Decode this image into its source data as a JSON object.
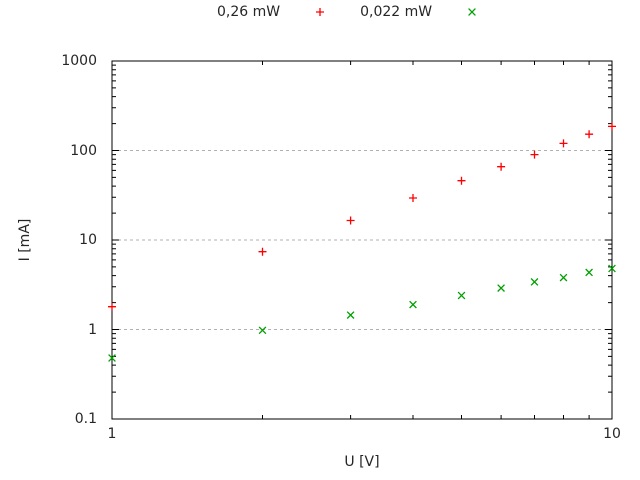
{
  "legend": {
    "entries": [
      {
        "label": "0,26 mW",
        "marker": "plus",
        "color": "#ff0000"
      },
      {
        "label": "0,022 mW",
        "marker": "cross",
        "color": "#00a000"
      }
    ]
  },
  "chart_data": {
    "type": "scatter",
    "title": "",
    "xlabel": "U [V]",
    "ylabel": "I [mA]",
    "x_scale": "log",
    "y_scale": "log",
    "xlim": [
      1,
      10
    ],
    "ylim": [
      0.1,
      1000
    ],
    "x_ticks": [
      1,
      10
    ],
    "y_ticks": [
      0.1,
      1,
      10,
      100,
      1000
    ],
    "gridlines_y": [
      1,
      10,
      100
    ],
    "grid_color": "#b0b0b0",
    "axis_color": "#000000",
    "legend_position": "top-center",
    "x": [
      1,
      2,
      3,
      4,
      5,
      6,
      7,
      8,
      9,
      10
    ],
    "series": [
      {
        "name": "0,26 mW",
        "marker": "plus",
        "color": "#ff0000",
        "values": [
          1.8,
          7.4,
          16.5,
          29.5,
          46,
          66,
          90,
          120,
          152,
          186
        ]
      },
      {
        "name": "0,022 mW",
        "marker": "cross",
        "color": "#00a000",
        "values": [
          0.48,
          0.98,
          1.45,
          1.9,
          2.4,
          2.9,
          3.4,
          3.8,
          4.35,
          4.8
        ]
      }
    ]
  }
}
